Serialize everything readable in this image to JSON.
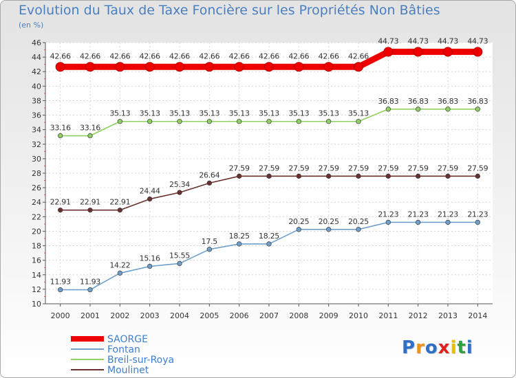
{
  "chart_data": {
    "type": "line",
    "title": "Evolution du Taux de Taxe Foncière sur les Propriétés Non Bâties",
    "ylabel": "(en %)",
    "xlabel": "",
    "ylim": [
      10,
      46
    ],
    "ytick_step": 2,
    "grid": true,
    "categories": [
      "2000",
      "2001",
      "2002",
      "2003",
      "2004",
      "2005",
      "2006",
      "2007",
      "2008",
      "2009",
      "2010",
      "2011",
      "2012",
      "2013",
      "2014"
    ],
    "series": [
      {
        "name": "SAORGE",
        "color": "#ee0000",
        "highlight": true,
        "values": [
          42.66,
          42.66,
          42.66,
          42.66,
          42.66,
          42.66,
          42.66,
          42.66,
          42.66,
          42.66,
          42.66,
          44.73,
          44.73,
          44.73,
          44.73
        ],
        "labels": [
          "42.66",
          "42.66",
          "42.66",
          "42.66",
          "42.66",
          "42.66",
          "42.66",
          "42.66",
          "42.66",
          "42.66",
          "42.66",
          "44.73",
          "44.73",
          "44.73",
          "44.73"
        ]
      },
      {
        "name": "Fontan",
        "color": "#6fa0cc",
        "highlight": false,
        "values": [
          11.93,
          11.93,
          14.22,
          15.16,
          15.55,
          17.5,
          18.25,
          18.25,
          20.25,
          20.25,
          20.25,
          21.23,
          21.23,
          21.23,
          21.23
        ],
        "labels": [
          "11.93",
          "11.93",
          "14.22",
          "15.16",
          "15.55",
          "17.5",
          "18.25",
          "18.25",
          "20.25",
          "20.25",
          "20.25",
          "21.23",
          "21.23",
          "21.23",
          "21.23"
        ]
      },
      {
        "name": "Breil-sur-Roya",
        "color": "#90d060",
        "highlight": false,
        "values": [
          33.16,
          33.16,
          35.13,
          35.13,
          35.13,
          35.13,
          35.13,
          35.13,
          35.13,
          35.13,
          35.13,
          36.83,
          36.83,
          36.83,
          36.83
        ],
        "labels": [
          "33.16",
          "33.16",
          "35.13",
          "35.13",
          "35.13",
          "35.13",
          "35.13",
          "35.13",
          "35.13",
          "35.13",
          "35.13",
          "36.83",
          "36.83",
          "36.83",
          "36.83"
        ]
      },
      {
        "name": "Moulinet",
        "color": "#6a2f2f",
        "highlight": false,
        "values": [
          22.91,
          22.91,
          22.91,
          24.44,
          25.34,
          26.64,
          27.59,
          27.59,
          27.59,
          27.59,
          27.59,
          27.59,
          27.59,
          27.59,
          27.59
        ],
        "labels": [
          "22.91",
          "22.91",
          "22.91",
          "24.44",
          "25.34",
          "26.64",
          "27.59",
          "27.59",
          "27.59",
          "27.59",
          "27.59",
          "27.59",
          "27.59",
          "27.59",
          "27.59"
        ]
      }
    ],
    "legend": [
      "SAORGE",
      "Fontan",
      "Breil-sur-Roya",
      "Moulinet"
    ],
    "legend_position": "bottom-left"
  },
  "brand": {
    "letters": [
      "P",
      "r",
      "o",
      "x",
      "i",
      "t",
      "i"
    ],
    "colors": [
      "#2e6fc8",
      "#f09020",
      "#2e6fc8",
      "#e02020",
      "#e8c000",
      "#30a040",
      "#2e6fc8"
    ]
  }
}
